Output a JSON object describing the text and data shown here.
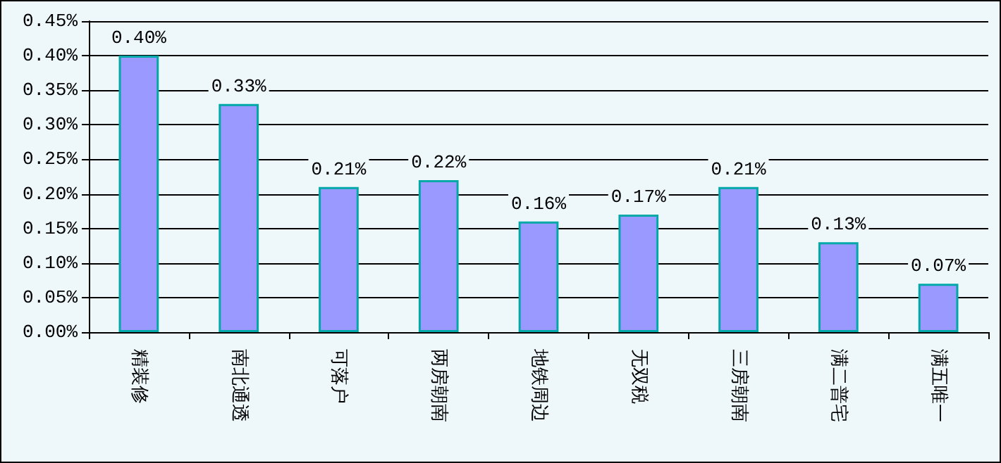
{
  "chart_data": {
    "type": "bar",
    "categories": [
      "精装修",
      "南北通透",
      "可落户",
      "两房朝南",
      "地铁周边",
      "无双税",
      "三房朝南",
      "满二普宅",
      "满五唯一"
    ],
    "values": [
      0.4,
      0.33,
      0.21,
      0.22,
      0.16,
      0.17,
      0.21,
      0.13,
      0.07
    ],
    "value_labels": [
      "0.40%",
      "0.33%",
      "0.21%",
      "0.22%",
      "0.16%",
      "0.17%",
      "0.21%",
      "0.13%",
      "0.07%"
    ],
    "color": "#9999ff",
    "ylim": [
      0,
      0.45
    ],
    "yticks": [
      {
        "value": 0,
        "label": "0.00%"
      },
      {
        "value": 0.05,
        "label": "0.05%"
      },
      {
        "value": 0.1,
        "label": "0.10%"
      },
      {
        "value": 0.15,
        "label": "0.15%"
      },
      {
        "value": 0.2,
        "label": "0.20%"
      },
      {
        "value": 0.25,
        "label": "0.25%"
      },
      {
        "value": 0.3,
        "label": "0.30%"
      },
      {
        "value": 0.35,
        "label": "0.35%"
      },
      {
        "value": 0.4,
        "label": "0.40%"
      },
      {
        "value": 0.45,
        "label": "0.45%"
      }
    ],
    "grid": "y"
  }
}
